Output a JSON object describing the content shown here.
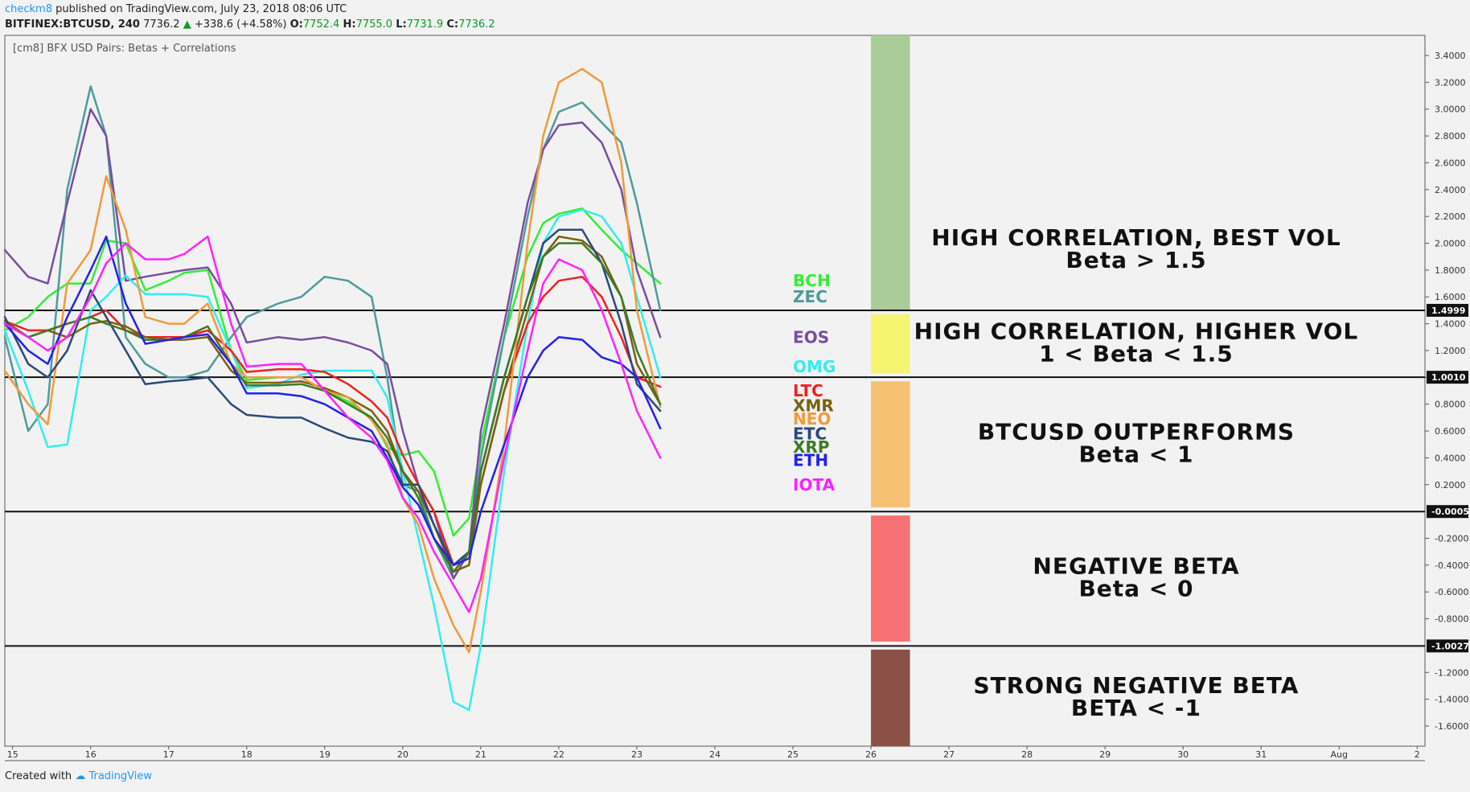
{
  "header": {
    "user": "checkm8",
    "published": "published on TradingView.com, July 23, 2018 08:06 UTC",
    "symbol": "BITFINEX:BTCUSD, 240",
    "price": "7736.2",
    "change": "+338.6 (+4.58%)",
    "o_label": "O:",
    "o_val": "7752.4",
    "h_label": "H:",
    "h_val": "7755.0",
    "l_label": "L:",
    "l_val": "7731.9",
    "c_label": "C:",
    "c_val": "7736.2"
  },
  "footer": {
    "created": "Created with",
    "brand": "TradingView"
  },
  "chart_data": {
    "type": "line",
    "title": "[cm8] BFX USD Pairs: Betas + Correlations",
    "x_ticks": [
      "15",
      "16",
      "17",
      "18",
      "19",
      "20",
      "21",
      "22",
      "23",
      "24",
      "25",
      "26",
      "27",
      "28",
      "29",
      "30",
      "31",
      "Aug",
      "2"
    ],
    "y_ticks": [
      "3.4000",
      "3.2000",
      "3.0000",
      "2.8000",
      "2.6000",
      "2.4000",
      "2.2000",
      "2.0000",
      "1.8000",
      "1.6000",
      "1.4000",
      "1.2000",
      "1.0000",
      "0.8000",
      "0.6000",
      "0.4000",
      "0.2000",
      "-0.2000",
      "-0.4000",
      "-0.6000",
      "-0.8000",
      "-1.2000",
      "-1.4000",
      "-1.6000"
    ],
    "ylim": [
      -1.75,
      3.55
    ],
    "xlim": [
      14.9,
      33.1
    ],
    "hlines": [
      {
        "value": 1.4999,
        "label": "1.4999"
      },
      {
        "value": 1.001,
        "label": "1.0010"
      },
      {
        "value": -0.0005,
        "label": "-0.0005"
      },
      {
        "value": -1.0027,
        "label": "-1.0027"
      }
    ],
    "zones": [
      {
        "from": 1.5,
        "to": 3.55,
        "color": "#a9cc99",
        "line1": "HIGH CORRELATION, BEST VOL",
        "line2": "Beta > 1.5"
      },
      {
        "from": 1.03,
        "to": 1.47,
        "color": "#f6f572",
        "line1": "HIGH CORRELATION, HIGHER VOL",
        "line2": "1 < Beta < 1.5"
      },
      {
        "from": 0.03,
        "to": 0.97,
        "color": "#f6c172",
        "line1": "BTCUSD OUTPERFORMS",
        "line2": "Beta < 1"
      },
      {
        "from": -0.97,
        "to": -0.03,
        "color": "#f67272",
        "line1": "NEGATIVE BETA",
        "line2": "Beta < 0"
      },
      {
        "from": -1.75,
        "to": -1.03,
        "color": "#8b5147",
        "line1": "STRONG NEGATIVE BETA",
        "line2": "BETA < -1"
      }
    ],
    "labels": [
      {
        "name": "BCH",
        "value": 1.72,
        "color": "#33ee33"
      },
      {
        "name": "ZEC",
        "value": 1.6,
        "color": "#4f9a9a"
      },
      {
        "name": "EOS",
        "value": 1.3,
        "color": "#7a4da0"
      },
      {
        "name": "OMG",
        "value": 1.08,
        "color": "#33eeee"
      },
      {
        "name": "LTC",
        "value": 0.9,
        "color": "#ee2222"
      },
      {
        "name": "XMR",
        "value": 0.79,
        "color": "#7a6010"
      },
      {
        "name": "NEO",
        "value": 0.69,
        "color": "#f09a3a"
      },
      {
        "name": "ETC",
        "value": 0.58,
        "color": "#2a4a7a"
      },
      {
        "name": "XRP",
        "value": 0.48,
        "color": "#3d7a25"
      },
      {
        "name": "ETH",
        "value": 0.38,
        "color": "#2222ee"
      },
      {
        "name": "IOTA",
        "value": 0.2,
        "color": "#ff22ff"
      }
    ],
    "x": [
      14.9,
      15.2,
      15.45,
      15.7,
      16.0,
      16.2,
      16.45,
      16.7,
      17.0,
      17.2,
      17.5,
      17.8,
      18.0,
      18.4,
      18.7,
      19.0,
      19.3,
      19.6,
      19.8,
      20.0,
      20.2,
      20.4,
      20.65,
      20.85,
      21.0,
      21.3,
      21.6,
      21.8,
      22.0,
      22.3,
      22.55,
      22.8,
      23.0,
      23.3
    ],
    "series": [
      {
        "name": "BCH",
        "color": "#33ee33",
        "values": [
          1.35,
          1.45,
          1.6,
          1.7,
          1.7,
          2.02,
          2.0,
          1.65,
          1.72,
          1.78,
          1.8,
          1.2,
          0.98,
          1.0,
          1.0,
          0.9,
          0.82,
          0.7,
          0.48,
          0.42,
          0.45,
          0.3,
          -0.18,
          -0.05,
          0.5,
          1.3,
          1.9,
          2.15,
          2.22,
          2.26,
          2.1,
          1.95,
          1.85,
          1.7
        ]
      },
      {
        "name": "ZEC",
        "color": "#4f9a9a",
        "values": [
          1.3,
          0.6,
          0.8,
          2.4,
          3.17,
          2.8,
          1.3,
          1.1,
          1.0,
          1.0,
          1.05,
          1.3,
          1.45,
          1.55,
          1.6,
          1.75,
          1.72,
          1.6,
          1.0,
          0.2,
          0.15,
          -0.2,
          -0.5,
          -0.3,
          0.4,
          1.3,
          2.2,
          2.7,
          2.98,
          3.05,
          2.9,
          2.75,
          2.3,
          1.5
        ]
      },
      {
        "name": "EOS",
        "color": "#7a4da0",
        "values": [
          1.95,
          1.75,
          1.7,
          2.3,
          3.0,
          2.8,
          1.72,
          1.75,
          1.78,
          1.8,
          1.82,
          1.55,
          1.26,
          1.3,
          1.28,
          1.3,
          1.26,
          1.2,
          1.1,
          0.6,
          0.2,
          0.0,
          -0.5,
          -0.3,
          0.6,
          1.4,
          2.3,
          2.7,
          2.88,
          2.9,
          2.75,
          2.4,
          1.8,
          1.3
        ]
      },
      {
        "name": "OMG",
        "color": "#33eeee",
        "values": [
          1.35,
          0.9,
          0.48,
          0.5,
          1.5,
          1.6,
          1.76,
          1.62,
          1.62,
          1.62,
          1.6,
          1.2,
          0.92,
          0.95,
          1.02,
          1.05,
          1.05,
          1.05,
          0.85,
          0.3,
          -0.2,
          -0.7,
          -1.42,
          -1.48,
          -1.0,
          0.3,
          1.4,
          2.0,
          2.2,
          2.25,
          2.2,
          2.0,
          1.6,
          1.0
        ]
      },
      {
        "name": "LTC",
        "color": "#ee2222",
        "values": [
          1.42,
          1.35,
          1.35,
          1.4,
          1.45,
          1.5,
          1.35,
          1.3,
          1.3,
          1.3,
          1.35,
          1.2,
          1.04,
          1.06,
          1.06,
          1.04,
          0.95,
          0.82,
          0.7,
          0.42,
          0.2,
          0.0,
          -0.4,
          -0.3,
          0.2,
          0.9,
          1.4,
          1.6,
          1.72,
          1.75,
          1.6,
          1.3,
          1.0,
          0.93
        ]
      },
      {
        "name": "XMR",
        "color": "#7a6010",
        "values": [
          1.42,
          1.3,
          1.35,
          1.3,
          1.4,
          1.42,
          1.38,
          1.3,
          1.28,
          1.28,
          1.3,
          1.05,
          0.96,
          0.96,
          0.97,
          0.92,
          0.85,
          0.75,
          0.6,
          0.3,
          0.15,
          -0.1,
          -0.45,
          -0.4,
          0.2,
          0.9,
          1.5,
          1.9,
          2.05,
          2.02,
          1.9,
          1.6,
          1.1,
          0.8
        ]
      },
      {
        "name": "NEO",
        "color": "#f09a3a",
        "values": [
          1.05,
          0.8,
          0.65,
          1.7,
          1.95,
          2.5,
          2.1,
          1.45,
          1.4,
          1.4,
          1.55,
          1.1,
          1.0,
          1.0,
          1.0,
          0.9,
          0.85,
          0.68,
          0.5,
          0.1,
          -0.1,
          -0.5,
          -0.85,
          -1.05,
          -0.6,
          0.5,
          2.0,
          2.8,
          3.2,
          3.3,
          3.2,
          2.6,
          1.5,
          0.78
        ]
      },
      {
        "name": "ETC",
        "color": "#2a4a7a",
        "values": [
          1.45,
          1.1,
          1.0,
          1.2,
          1.65,
          1.45,
          1.2,
          0.95,
          0.97,
          0.98,
          1.0,
          0.8,
          0.72,
          0.7,
          0.7,
          0.62,
          0.55,
          0.52,
          0.45,
          0.2,
          0.2,
          -0.1,
          -0.4,
          -0.3,
          0.3,
          1.0,
          1.6,
          2.0,
          2.1,
          2.1,
          1.85,
          1.4,
          0.95,
          0.75
        ]
      },
      {
        "name": "XRP",
        "color": "#3d7a25",
        "values": [
          1.4,
          1.3,
          1.35,
          1.4,
          1.45,
          1.4,
          1.35,
          1.28,
          1.28,
          1.3,
          1.38,
          1.1,
          0.94,
          0.94,
          0.95,
          0.9,
          0.8,
          0.7,
          0.55,
          0.3,
          0.1,
          -0.2,
          -0.45,
          -0.3,
          0.3,
          1.0,
          1.6,
          1.9,
          2.0,
          2.0,
          1.85,
          1.6,
          1.2,
          0.8
        ]
      },
      {
        "name": "ETH",
        "color": "#2222ee",
        "values": [
          1.4,
          1.2,
          1.1,
          1.45,
          1.8,
          2.05,
          1.55,
          1.25,
          1.28,
          1.3,
          1.32,
          1.1,
          0.88,
          0.88,
          0.86,
          0.8,
          0.7,
          0.6,
          0.4,
          0.18,
          0.05,
          -0.2,
          -0.4,
          -0.35,
          0.0,
          0.5,
          1.0,
          1.2,
          1.3,
          1.28,
          1.15,
          1.1,
          1.0,
          0.62
        ]
      },
      {
        "name": "IOTA",
        "color": "#ff22ff",
        "values": [
          1.4,
          1.3,
          1.2,
          1.3,
          1.6,
          1.85,
          2.0,
          1.88,
          1.88,
          1.92,
          2.05,
          1.4,
          1.08,
          1.1,
          1.1,
          0.9,
          0.7,
          0.55,
          0.38,
          0.1,
          -0.05,
          -0.3,
          -0.55,
          -0.75,
          -0.5,
          0.4,
          1.2,
          1.7,
          1.88,
          1.8,
          1.5,
          1.1,
          0.75,
          0.4
        ]
      }
    ]
  }
}
